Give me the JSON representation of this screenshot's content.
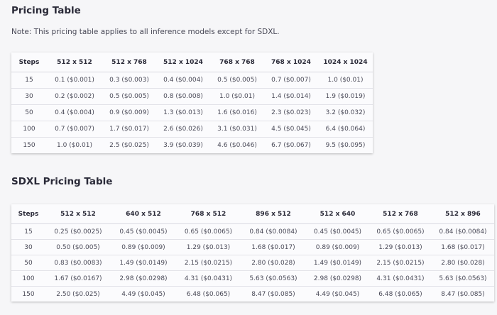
{
  "pricing": {
    "title": "Pricing Table",
    "note": "Note: This pricing table applies to all inference models except for SDXL.",
    "headers": [
      "Steps",
      "512 x 512",
      "512 x 768",
      "512 x 1024",
      "768 x 768",
      "768 x 1024",
      "1024 x 1024"
    ],
    "rows": [
      [
        "15",
        "0.1 ($0.001)",
        "0.3 ($0.003)",
        "0.4 ($0.004)",
        "0.5 ($0.005)",
        "0.7 ($0.007)",
        "1.0 ($0.01)"
      ],
      [
        "30",
        "0.2 ($0.002)",
        "0.5 ($0.005)",
        "0.8 ($0.008)",
        "1.0 ($0.01)",
        "1.4 ($0.014)",
        "1.9 ($0.019)"
      ],
      [
        "50",
        "0.4 ($0.004)",
        "0.9 ($0.009)",
        "1.3 ($0.013)",
        "1.6 ($0.016)",
        "2.3 ($0.023)",
        "3.2 ($0.032)"
      ],
      [
        "100",
        "0.7 ($0.007)",
        "1.7 ($0.017)",
        "2.6 ($0.026)",
        "3.1 ($0.031)",
        "4.5 ($0.045)",
        "6.4 ($0.064)"
      ],
      [
        "150",
        "1.0 ($0.01)",
        "2.5 ($0.025)",
        "3.9 ($0.039)",
        "4.6 ($0.046)",
        "6.7 ($0.067)",
        "9.5 ($0.095)"
      ]
    ]
  },
  "sdxl": {
    "title": "SDXL Pricing Table",
    "headers": [
      "Steps",
      "512 x 512",
      "640 x 512",
      "768 x 512",
      "896 x 512",
      "512 x 640",
      "512 x 768",
      "512 x 896"
    ],
    "rows": [
      [
        "15",
        "0.25 ($0.0025)",
        "0.45 ($0.0045)",
        "0.65 ($0.0065)",
        "0.84 ($0.0084)",
        "0.45 ($0.0045)",
        "0.65 ($0.0065)",
        "0.84 ($0.0084)"
      ],
      [
        "30",
        "0.50 ($0.005)",
        "0.89 ($0.009)",
        "1.29 ($0.013)",
        "1.68 ($0.017)",
        "0.89 ($0.009)",
        "1.29 ($0.013)",
        "1.68 ($0.017)"
      ],
      [
        "50",
        "0.83 ($0.0083)",
        "1.49 ($0.0149)",
        "2.15 ($0.0215)",
        "2.80 ($0.028)",
        "1.49 ($0.0149)",
        "2.15 ($0.0215)",
        "2.80 ($0.028)"
      ],
      [
        "100",
        "1.67 ($0.0167)",
        "2.98 ($0.0298)",
        "4.31 ($0.0431)",
        "5.63 ($0.0563)",
        "2.98 ($0.0298)",
        "4.31 ($0.0431)",
        "5.63 ($0.0563)"
      ],
      [
        "150",
        "2.50 ($0.025)",
        "4.49 ($0.045)",
        "6.48 ($0.065)",
        "8.47 ($0.085)",
        "4.49 ($0.045)",
        "6.48 ($0.065)",
        "8.47 ($0.085)"
      ]
    ]
  }
}
